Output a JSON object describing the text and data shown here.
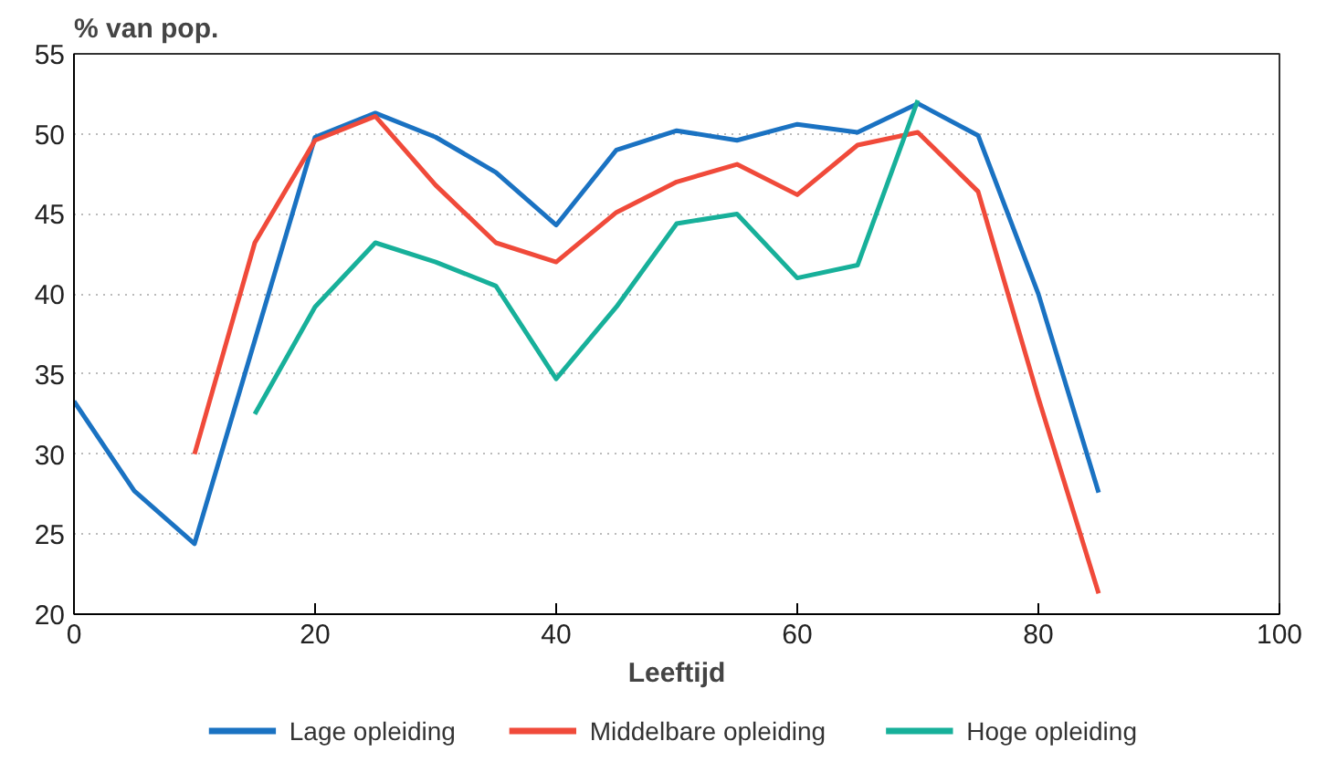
{
  "chart_data": {
    "type": "line",
    "ylabel": "% van pop.",
    "xlabel": "Leeftijd",
    "xlim": [
      0,
      100
    ],
    "xticks": [
      0,
      20,
      40,
      60,
      80,
      100
    ],
    "ylim": [
      20,
      55
    ],
    "yticks": [
      20,
      25,
      30,
      35,
      40,
      45,
      50,
      55
    ],
    "grid": "y",
    "legend": "bottom",
    "line_style": "solid",
    "series": [
      {
        "name": "Lage opleiding",
        "color": "#1a72c2",
        "x": [
          0,
          5,
          10,
          20,
          25,
          30,
          35,
          40,
          45,
          50,
          55,
          60,
          65,
          70,
          75,
          80,
          85
        ],
        "values": [
          33.3,
          27.7,
          24.4,
          49.8,
          51.3,
          49.8,
          47.6,
          44.3,
          49,
          50.2,
          49.6,
          50.6,
          50.1,
          51.9,
          49.9,
          40,
          27.6
        ]
      },
      {
        "name": "Middelbare opleiding",
        "color": "#f04a3a",
        "x": [
          10,
          15,
          20,
          25,
          30,
          35,
          40,
          45,
          50,
          55,
          60,
          65,
          70,
          75,
          80,
          85
        ],
        "values": [
          30,
          43.2,
          49.6,
          51.1,
          46.8,
          43.2,
          42,
          45.1,
          47,
          48.1,
          46.2,
          49.3,
          50.1,
          46.4,
          33.5,
          21.3
        ]
      },
      {
        "name": "Hoge opleiding",
        "color": "#17b09a",
        "x": [
          15,
          20,
          25,
          30,
          35,
          40,
          45,
          50,
          55,
          60,
          65,
          70
        ],
        "values": [
          32.5,
          39.2,
          43.2,
          42,
          40.5,
          34.7,
          39.2,
          44.4,
          45,
          41,
          41.8,
          52.1
        ]
      }
    ]
  }
}
